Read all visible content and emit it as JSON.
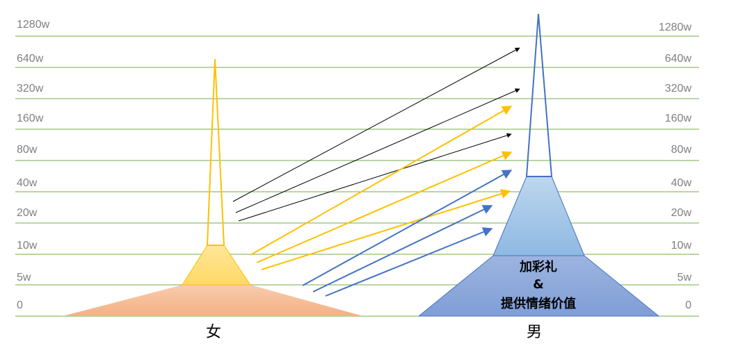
{
  "levels": [
    "0",
    "5w",
    "10w",
    "20w",
    "40w",
    "80w",
    "160w",
    "320w",
    "640w",
    "1280w"
  ],
  "female": {
    "label": "女",
    "colors": {
      "base": "#f4b183",
      "base_edge": "#f4b183",
      "middle_top": "#ffe699",
      "middle_bottom": "#ffd966",
      "spire_stroke": "#ffc000"
    }
  },
  "male": {
    "label": "男",
    "center_label_lines": [
      "加彩礼",
      "&",
      "提供情绪价值"
    ],
    "colors": {
      "base": "#8faadc",
      "middle_top": "#bdd7ee",
      "middle_bottom": "#9dc3e6",
      "stroke": "#4472c4"
    }
  },
  "arrows": {
    "colors": {
      "black": "#000000",
      "yellow": "#ffc000",
      "blue": "#4472c4"
    }
  },
  "gridline_color": "#70ad47"
}
